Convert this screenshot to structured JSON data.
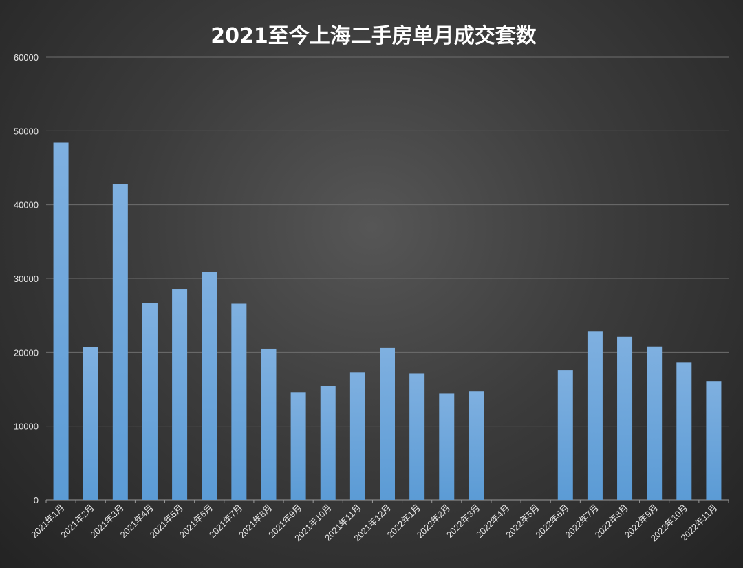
{
  "chart_data": {
    "type": "bar",
    "title": "2021至今上海二手房单月成交套数",
    "xlabel": "",
    "ylabel": "",
    "ylim": [
      0,
      60000
    ],
    "yticks": [
      0,
      10000,
      20000,
      30000,
      40000,
      50000,
      60000
    ],
    "grid": true,
    "legend": "none",
    "bar_color": "#5b9bd5",
    "bar_color_light": "#7fb0e0",
    "categories": [
      "2021年1月",
      "2021年2月",
      "2021年3月",
      "2021年4月",
      "2021年5月",
      "2021年6月",
      "2021年7月",
      "2021年8月",
      "2021年9月",
      "2021年10月",
      "2021年11月",
      "2021年12月",
      "2022年1月",
      "2022年2月",
      "2022年3月",
      "2022年4月",
      "2022年5月",
      "2022年6月",
      "2022年7月",
      "2022年8月",
      "2022年9月",
      "2022年10月",
      "2022年11月"
    ],
    "values": [
      48400,
      20700,
      42800,
      26700,
      28600,
      30900,
      26600,
      20500,
      14600,
      15400,
      17300,
      20600,
      17100,
      14400,
      14700,
      0,
      0,
      17600,
      22800,
      22100,
      20800,
      18600,
      16100
    ]
  }
}
